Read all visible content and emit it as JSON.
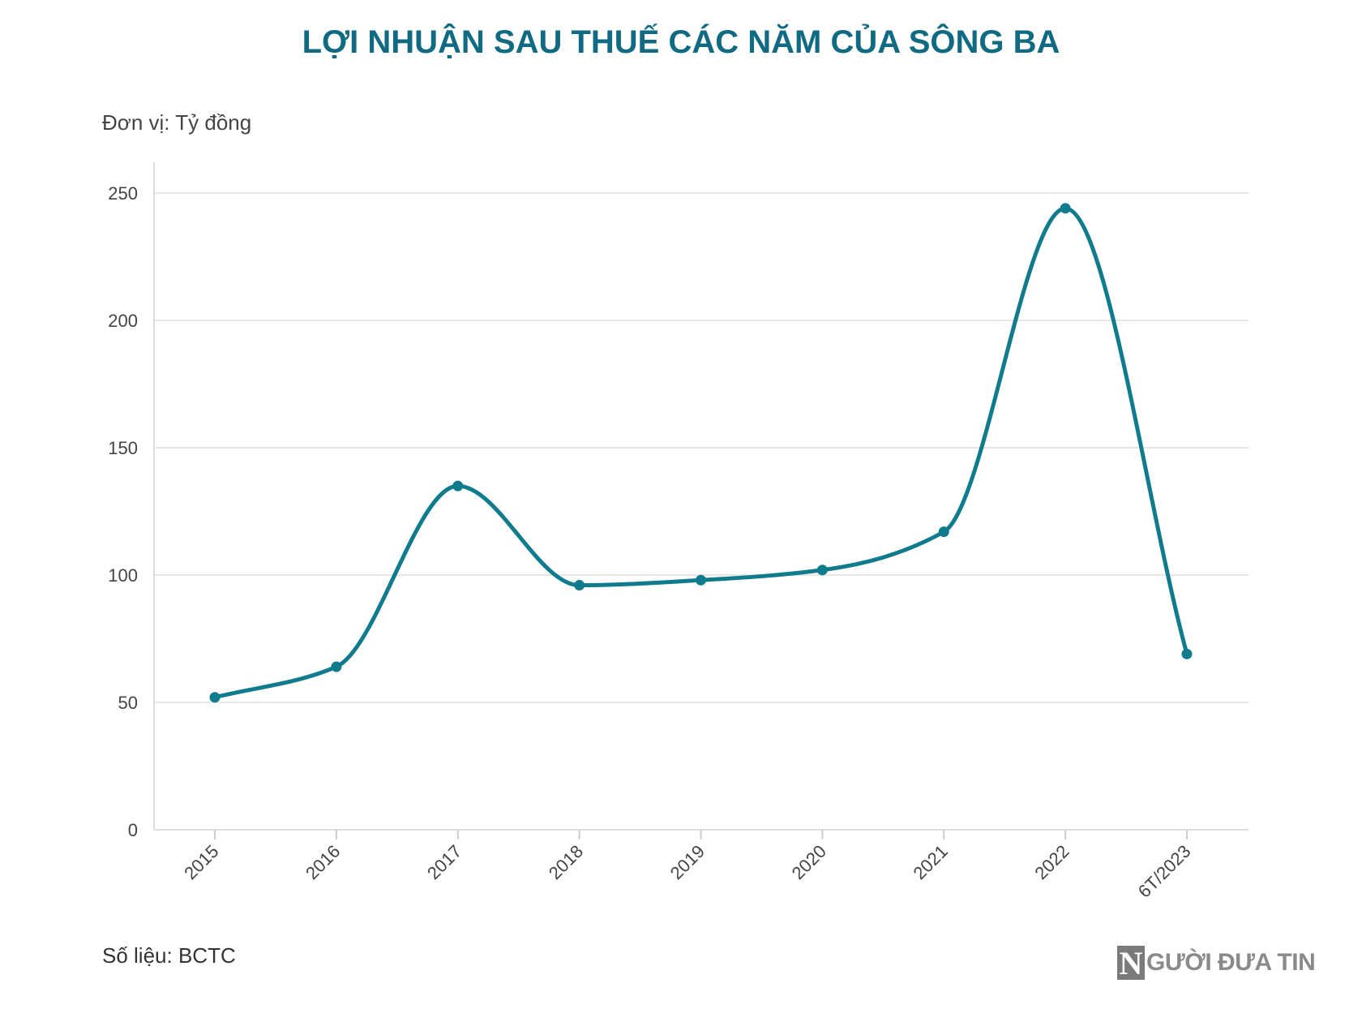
{
  "title": "LỢI NHUẬN SAU THUẾ CÁC NĂM CỦA SÔNG BA",
  "unit_label": "Đơn vị: Tỷ đồng",
  "source_label": "Số liệu: BCTC",
  "logo": {
    "letter": "N",
    "text": "GƯỜI ĐƯA TIN"
  },
  "colors": {
    "line": "#0f7b8c",
    "title": "#0f6a82",
    "grid": "#e6e6e6",
    "axis": "#dddddd"
  },
  "chart_data": {
    "type": "line",
    "title": "LỢI NHUẬN SAU THUẾ CÁC NĂM CỦA SÔNG BA",
    "xlabel": "",
    "ylabel": "Đơn vị: Tỷ đồng",
    "categories": [
      "2015",
      "2016",
      "2017",
      "2018",
      "2019",
      "2020",
      "2021",
      "2022",
      "6T/2023"
    ],
    "series": [
      {
        "values": [
          52,
          64,
          135,
          96,
          98,
          102,
          117,
          244,
          69
        ]
      }
    ],
    "ylim": [
      0,
      250
    ],
    "yticks": [
      0,
      50,
      100,
      150,
      200,
      250
    ],
    "grid": true,
    "smooth": true,
    "markers": true
  }
}
